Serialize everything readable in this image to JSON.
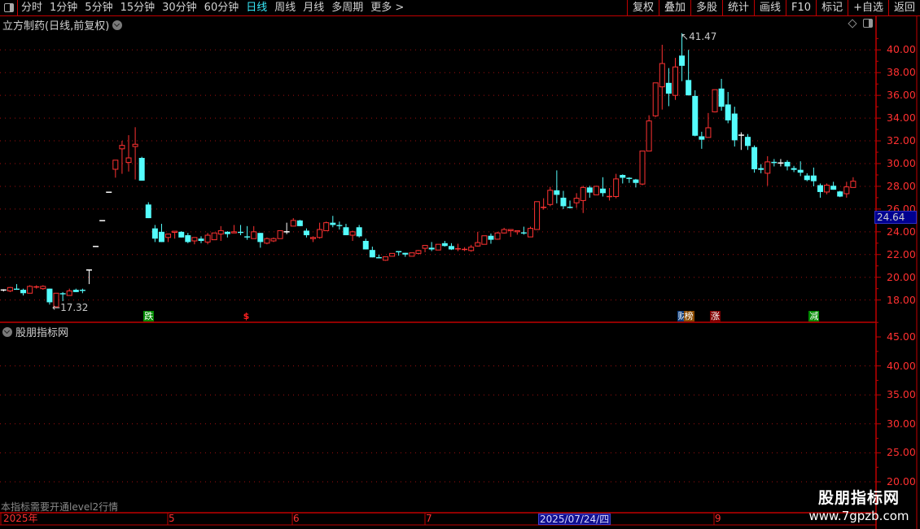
{
  "toolbar": {
    "periods": [
      "分时",
      "1分钟",
      "5分钟",
      "15分钟",
      "30分钟",
      "60分钟",
      "日线",
      "周线",
      "月线",
      "多周期",
      "更多 >"
    ],
    "active_period": "日线",
    "buttons": [
      "复权",
      "叠加",
      "多股",
      "统计",
      "画线",
      "F10",
      "标记",
      "+自选",
      "返回"
    ]
  },
  "stock": {
    "title": "立方制药(日线,前复权)",
    "current_price": "24.64",
    "high_label": "41.47",
    "low_label": "17.32"
  },
  "price_axis": {
    "labels": [
      "40.00",
      "38.00",
      "36.00",
      "34.00",
      "32.00",
      "30.00",
      "28.00",
      "26.00",
      "24.00",
      "22.00",
      "20.00",
      "18.00"
    ],
    "range": [
      18,
      40
    ]
  },
  "indicator": {
    "title": "股朋指标网",
    "axis_labels": [
      "45.00",
      "40.00",
      "35.00",
      "30.00",
      "25.00",
      "20.00"
    ],
    "range": [
      20,
      45
    ],
    "note": "本指标需要开通level2行情"
  },
  "date_axis": {
    "labels": [
      "2025年",
      "5",
      "6",
      "7",
      "9"
    ],
    "highlight": "2025/07/24/四"
  },
  "signals": [
    {
      "label": "跌",
      "color": "#008a00",
      "candle": 22
    },
    {
      "label": "$",
      "color": "#ff2020",
      "candle": 37
    },
    {
      "label": "财",
      "color": "#0a3a7a",
      "candle": 103
    },
    {
      "label": "榜",
      "color": "#8a4a00",
      "candle": 104
    },
    {
      "label": "涨",
      "color": "#800000",
      "candle": 108
    },
    {
      "label": "减",
      "color": "#008a00",
      "candle": 123
    }
  ],
  "watermark": {
    "name": "股朋指标网",
    "url": "www.7gpzb.com"
  },
  "colors": {
    "up": "#ff3232",
    "down": "#54fcfc",
    "flat": "#ffffff",
    "grid": "#a01010",
    "axis": "#c00000"
  },
  "candles": [
    [
      18.88,
      18.95,
      18.75,
      18.88
    ],
    [
      18.8,
      19.15,
      18.7,
      19.1
    ],
    [
      19.0,
      19.4,
      18.9,
      18.9
    ],
    [
      18.9,
      19.0,
      18.4,
      18.6
    ],
    [
      18.6,
      19.3,
      18.6,
      19.2
    ],
    [
      19.1,
      19.3,
      19.0,
      19.15
    ],
    [
      19.0,
      19.3,
      18.9,
      19.2
    ],
    [
      19.0,
      19.0,
      17.6,
      17.8
    ],
    [
      17.4,
      18.6,
      17.32,
      18.6
    ],
    [
      18.6,
      18.7,
      17.9,
      18.5
    ],
    [
      18.4,
      19.0,
      18.4,
      18.8
    ],
    [
      18.9,
      19.0,
      18.7,
      18.7
    ],
    [
      18.9,
      19.0,
      18.6,
      18.8
    ],
    [
      20.64,
      20.64,
      19.4,
      20.64
    ],
    [
      22.71,
      22.71,
      22.71,
      22.71
    ],
    [
      24.98,
      24.98,
      24.98,
      24.98
    ],
    [
      27.48,
      27.48,
      27.48,
      27.48
    ],
    [
      29.5,
      30.3,
      28.76,
      30.3
    ],
    [
      31.3,
      32.0,
      29.1,
      31.6
    ],
    [
      30.1,
      32.5,
      29.3,
      30.5
    ],
    [
      31.5,
      33.2,
      28.6,
      31.7
    ],
    [
      30.5,
      30.6,
      28.5,
      28.5
    ],
    [
      26.4,
      26.6,
      25.2,
      25.2
    ],
    [
      24.3,
      24.6,
      23.1,
      23.4
    ],
    [
      24.0,
      24.7,
      23.1,
      23.1
    ],
    [
      23.5,
      23.8,
      23.1,
      23.8
    ],
    [
      23.95,
      24.05,
      23.4,
      24.05
    ],
    [
      24.0,
      24.05,
      23.5,
      23.5
    ],
    [
      23.7,
      23.9,
      23.0,
      23.1
    ],
    [
      23.2,
      23.5,
      22.9,
      23.5
    ],
    [
      23.4,
      23.6,
      23.0,
      23.2
    ],
    [
      23.1,
      23.9,
      22.9,
      23.7
    ],
    [
      23.3,
      23.9,
      23.3,
      23.9
    ],
    [
      23.8,
      24.5,
      23.2,
      24.1
    ],
    [
      24.0,
      24.05,
      23.5,
      23.8
    ],
    [
      23.9,
      24.6,
      23.9,
      24.0
    ],
    [
      24.0,
      24.6,
      23.7,
      23.9
    ],
    [
      23.6,
      24.5,
      23.3,
      23.5
    ],
    [
      23.4,
      24.5,
      23.4,
      24.0
    ],
    [
      23.9,
      23.9,
      22.6,
      23.1
    ],
    [
      23.0,
      23.5,
      22.9,
      23.4
    ],
    [
      23.2,
      23.5,
      23.1,
      23.4
    ],
    [
      23.4,
      24.1,
      23.4,
      24.1
    ],
    [
      24.0,
      24.8,
      23.8,
      24.0
    ],
    [
      24.5,
      25.2,
      24.5,
      25.0
    ],
    [
      25.0,
      25.05,
      24.5,
      24.5
    ],
    [
      24.1,
      24.3,
      23.5,
      23.7
    ],
    [
      23.4,
      23.6,
      23.1,
      23.5
    ],
    [
      23.5,
      24.8,
      23.4,
      24.2
    ],
    [
      24.1,
      24.9,
      24.1,
      24.8
    ],
    [
      24.8,
      25.4,
      24.4,
      24.6
    ],
    [
      24.6,
      24.9,
      24.2,
      24.5
    ],
    [
      24.4,
      24.7,
      23.7,
      23.7
    ],
    [
      23.7,
      24.1,
      23.2,
      24.0
    ],
    [
      24.4,
      24.6,
      23.5,
      23.6
    ],
    [
      23.2,
      23.4,
      22.45,
      22.45
    ],
    [
      22.4,
      22.7,
      21.75,
      21.75
    ],
    [
      21.72,
      22.0,
      21.67,
      21.7
    ],
    [
      21.5,
      21.8,
      21.45,
      21.8
    ],
    [
      21.85,
      22.1,
      21.85,
      22.1
    ],
    [
      22.25,
      22.3,
      21.9,
      22.2
    ],
    [
      22.15,
      22.15,
      21.8,
      22.0
    ],
    [
      21.85,
      22.15,
      21.85,
      22.15
    ],
    [
      22.1,
      22.4,
      22.0,
      22.35
    ],
    [
      22.55,
      22.8,
      22.2,
      22.8
    ],
    [
      22.6,
      23.1,
      22.3,
      22.45
    ],
    [
      22.4,
      22.9,
      22.4,
      22.9
    ],
    [
      23.0,
      23.2,
      22.7,
      22.75
    ],
    [
      22.75,
      23.0,
      22.4,
      22.45
    ],
    [
      22.45,
      22.95,
      22.3,
      22.5
    ],
    [
      22.42,
      22.65,
      22.3,
      22.45
    ],
    [
      22.35,
      22.85,
      22.25,
      22.65
    ],
    [
      22.75,
      24.0,
      22.7,
      23.05
    ],
    [
      22.9,
      23.65,
      22.9,
      23.65
    ],
    [
      23.65,
      23.85,
      22.95,
      23.3
    ],
    [
      23.35,
      24.0,
      23.3,
      23.9
    ],
    [
      23.9,
      24.35,
      23.85,
      24.2
    ],
    [
      24.1,
      24.2,
      23.55,
      24.2
    ],
    [
      24.0,
      24.1,
      23.75,
      24.1
    ],
    [
      23.95,
      24.45,
      23.75,
      23.85
    ],
    [
      23.55,
      24.45,
      23.55,
      24.3
    ],
    [
      24.2,
      26.65,
      24.2,
      26.65
    ],
    [
      26.1,
      26.95,
      25.95,
      26.15
    ],
    [
      26.4,
      27.95,
      26.25,
      27.65
    ],
    [
      27.65,
      29.4,
      26.5,
      27.25
    ],
    [
      27.0,
      27.6,
      26.0,
      26.25
    ],
    [
      26.15,
      26.75,
      26.05,
      26.1
    ],
    [
      26.55,
      27.4,
      26.1,
      26.95
    ],
    [
      26.75,
      28.05,
      25.65,
      27.9
    ],
    [
      27.9,
      28.05,
      27.0,
      27.45
    ],
    [
      27.25,
      28.05,
      27.25,
      28.0
    ],
    [
      27.8,
      28.8,
      27.1,
      27.4
    ],
    [
      27.05,
      27.85,
      26.75,
      27.1
    ],
    [
      27.1,
      29.1,
      26.95,
      28.65
    ],
    [
      29.0,
      29.05,
      28.25,
      28.75
    ],
    [
      28.7,
      28.8,
      28.3,
      28.65
    ],
    [
      28.6,
      28.65,
      27.9,
      28.3
    ],
    [
      28.2,
      31.1,
      28.1,
      31.1
    ],
    [
      31.1,
      34.25,
      31.1,
      33.75
    ],
    [
      34.2,
      37.1,
      34.1,
      37.1
    ],
    [
      36.75,
      40.45,
      34.75,
      38.8
    ],
    [
      37.1,
      38.4,
      35.05,
      36.15
    ],
    [
      36.0,
      39.3,
      35.6,
      38.5
    ],
    [
      39.5,
      41.47,
      37.25,
      38.6
    ],
    [
      37.35,
      40.0,
      36.0,
      36.0
    ],
    [
      35.95,
      36.45,
      32.4,
      32.45
    ],
    [
      32.4,
      32.8,
      31.3,
      32.1
    ],
    [
      32.3,
      34.45,
      32.3,
      33.15
    ],
    [
      34.55,
      36.5,
      34.5,
      36.5
    ],
    [
      36.6,
      37.45,
      34.65,
      35.0
    ],
    [
      35.2,
      36.3,
      33.55,
      33.8
    ],
    [
      34.4,
      35.0,
      31.5,
      32.05
    ],
    [
      32.5,
      32.75,
      31.2,
      32.5
    ],
    [
      32.35,
      32.6,
      31.2,
      31.55
    ],
    [
      31.45,
      31.6,
      29.2,
      29.5
    ],
    [
      29.6,
      29.95,
      29.15,
      29.45
    ],
    [
      29.15,
      30.65,
      28.05,
      30.15
    ],
    [
      30.1,
      30.4,
      29.75,
      30.05
    ],
    [
      30.05,
      30.4,
      29.75,
      30.05
    ],
    [
      30.15,
      30.3,
      29.4,
      29.75
    ],
    [
      29.6,
      29.8,
      29.25,
      29.45
    ],
    [
      29.45,
      30.2,
      28.9,
      29.2
    ],
    [
      28.95,
      29.15,
      28.45,
      28.55
    ],
    [
      28.95,
      29.65,
      28.0,
      28.45
    ],
    [
      28.1,
      28.25,
      27.0,
      27.5
    ],
    [
      27.5,
      28.25,
      27.3,
      28.1
    ],
    [
      28.05,
      28.4,
      27.7,
      27.7
    ],
    [
      27.55,
      27.6,
      27.05,
      27.1
    ],
    [
      27.35,
      28.4,
      27.0,
      27.95
    ],
    [
      27.9,
      28.8,
      27.9,
      28.45
    ]
  ]
}
